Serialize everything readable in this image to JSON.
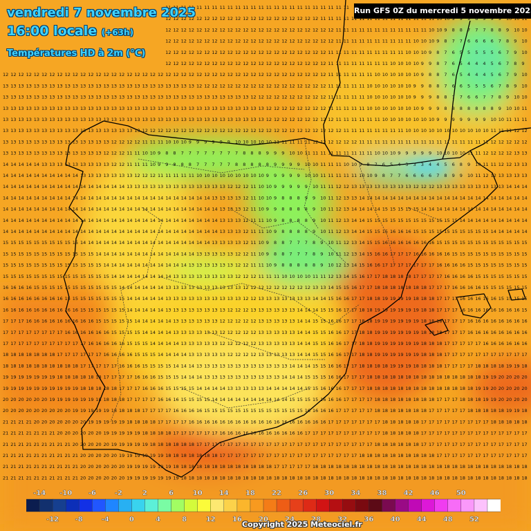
{
  "header": {
    "date_line": "vendredi 7 novembre 2025",
    "time_line": "16:00 locale",
    "time_offset": "(+63h)",
    "variable_line": "Températures HD à 2m (°C)",
    "run_label": "Run GFS 0Z du mercredi 5 novembre 2025"
  },
  "footer": {
    "copyright": "Copyright 2025 Meteociel.fr"
  },
  "legend": {
    "top_labels": [
      "-14",
      "-10",
      "-6",
      "-2",
      "2",
      "6",
      "10",
      "14",
      "18",
      "22",
      "26",
      "30",
      "34",
      "38",
      "42",
      "46",
      "50"
    ],
    "bottom_labels": [
      "-12",
      "-8",
      "-4",
      "0",
      "4",
      "8",
      "12",
      "16",
      "20",
      "24",
      "28",
      "32",
      "36",
      "40",
      "44",
      "48",
      "52"
    ],
    "colors": [
      "#0b1d4f",
      "#12306e",
      "#163f8f",
      "#0c2fb8",
      "#1230e6",
      "#2156ff",
      "#1f86ff",
      "#28b0f2",
      "#39d3ee",
      "#5cf0d8",
      "#7afca4",
      "#a2fd63",
      "#d4fb3b",
      "#fbfb3a",
      "#fde871",
      "#fcd24a",
      "#fbb62c",
      "#f89a1f",
      "#f47c17",
      "#ee5d16",
      "#e6401a",
      "#de2a16",
      "#d11414",
      "#b50f12",
      "#960d10",
      "#7a0a10",
      "#5c0a16",
      "#7a0a50",
      "#9a0a86",
      "#c009b6",
      "#dd18d8",
      "#f03cf0",
      "#f76cf7",
      "#fa98fa",
      "#fcc2fc",
      "#ffffff"
    ]
  },
  "map": {
    "description_colors": {
      "land_boundary": "#000000",
      "region_boundary": "#2a2a2a"
    }
  }
}
